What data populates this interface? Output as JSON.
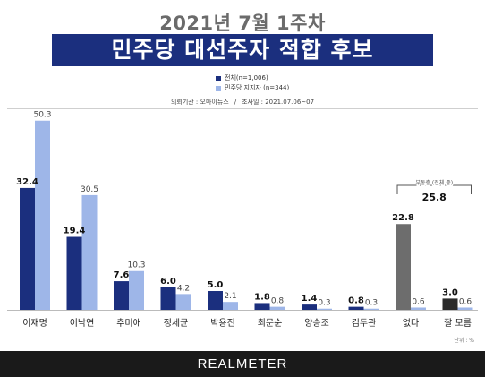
{
  "header": {
    "subtitle": "2021년 7월 1주차",
    "title": "민주당 대선주자 적합 후보"
  },
  "legend": [
    {
      "label": "전체(n=1,006)",
      "color": "#1b2f7e"
    },
    {
      "label": "민주당 지지자 (n=344)",
      "color": "#9eb6e8"
    }
  ],
  "source": {
    "agency": "의뢰기관 : 오마이뉴스",
    "period": "조사일 : 2021.07.06~07"
  },
  "chart_data": {
    "type": "bar",
    "categories": [
      "이재명",
      "이낙연",
      "추미애",
      "정세균",
      "박용진",
      "최문순",
      "양승조",
      "김두관",
      "없다",
      "잘 모름"
    ],
    "series": [
      {
        "name": "전체(n=1,006)",
        "values": [
          32.4,
          19.4,
          7.6,
          6.0,
          5.0,
          1.8,
          1.4,
          0.8,
          22.8,
          3.0
        ]
      },
      {
        "name": "민주당 지지자 (n=344)",
        "values": [
          50.3,
          30.5,
          10.3,
          4.2,
          2.1,
          0.8,
          0.3,
          0.3,
          0.6,
          0.6
        ]
      }
    ],
    "colors": {
      "all": "#1b2f7e",
      "supporters": "#9eb6e8",
      "none": "#6d6d6d",
      "unknown": "#2b2b2b"
    },
    "annotation": {
      "label": "부동층 (전체 중)",
      "value": "25.8"
    },
    "unit_label": "단위 : %"
  },
  "footer": {
    "brand": "REALMETER"
  }
}
